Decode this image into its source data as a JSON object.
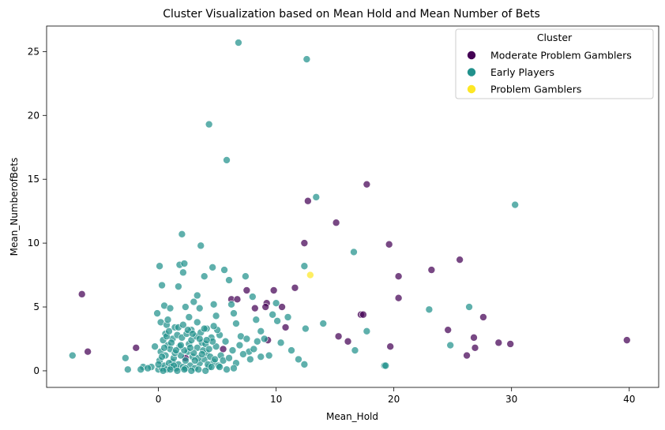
{
  "chart_data": {
    "type": "scatter",
    "title": "Cluster Visualization based on Mean Hold and Mean Number of Bets",
    "xlabel": "Mean_Hold",
    "ylabel": "Mean_NumberofBets",
    "xlim": [
      -9.5,
      42.5
    ],
    "ylim": [
      -1.3,
      27.0
    ],
    "xticks": [
      0,
      10,
      20,
      30,
      40
    ],
    "yticks": [
      0,
      5,
      10,
      15,
      20,
      25
    ],
    "grid": false,
    "legend": {
      "title": "Cluster",
      "position": "top-right"
    },
    "series": [
      {
        "name": "Moderate Problem Gamblers",
        "color": "#440154",
        "points": [
          [
            -6.5,
            6.0
          ],
          [
            -6.0,
            1.5
          ],
          [
            -1.9,
            1.8
          ],
          [
            2.3,
            1.0
          ],
          [
            5.5,
            1.7
          ],
          [
            6.2,
            5.6
          ],
          [
            6.7,
            5.6
          ],
          [
            7.5,
            6.3
          ],
          [
            8.2,
            4.9
          ],
          [
            9.2,
            5.3
          ],
          [
            9.1,
            5.0
          ],
          [
            9.3,
            2.4
          ],
          [
            9.8,
            6.3
          ],
          [
            10.5,
            5.0
          ],
          [
            10.8,
            3.4
          ],
          [
            11.6,
            6.5
          ],
          [
            12.4,
            10.0
          ],
          [
            12.7,
            13.3
          ],
          [
            15.1,
            11.6
          ],
          [
            15.3,
            2.7
          ],
          [
            16.1,
            2.3
          ],
          [
            17.2,
            4.4
          ],
          [
            17.4,
            4.4
          ],
          [
            17.7,
            14.6
          ],
          [
            19.6,
            9.9
          ],
          [
            19.7,
            1.9
          ],
          [
            20.4,
            7.4
          ],
          [
            20.4,
            5.7
          ],
          [
            23.2,
            7.9
          ],
          [
            24.6,
            3.2
          ],
          [
            25.6,
            8.7
          ],
          [
            26.2,
            1.2
          ],
          [
            26.8,
            2.6
          ],
          [
            26.9,
            1.8
          ],
          [
            27.6,
            4.2
          ],
          [
            28.9,
            2.2
          ],
          [
            29.9,
            2.1
          ],
          [
            39.8,
            2.4
          ]
        ]
      },
      {
        "name": "Early Players",
        "color": "#21918c",
        "points": [
          [
            -7.3,
            1.2
          ],
          [
            -2.8,
            1.0
          ],
          [
            -2.6,
            0.1
          ],
          [
            -1.3,
            0.3
          ],
          [
            -0.6,
            0.3
          ],
          [
            -0.3,
            1.9
          ],
          [
            -0.1,
            4.5
          ],
          [
            0.1,
            8.2
          ],
          [
            0.2,
            3.8
          ],
          [
            0.3,
            6.7
          ],
          [
            0.5,
            5.1
          ],
          [
            0.6,
            2.9
          ],
          [
            0.7,
            3.6
          ],
          [
            0.8,
            4.0
          ],
          [
            1.0,
            4.9
          ],
          [
            1.2,
            0.7
          ],
          [
            1.4,
            3.4
          ],
          [
            1.7,
            6.6
          ],
          [
            1.8,
            8.3
          ],
          [
            2.0,
            10.7
          ],
          [
            2.2,
            8.4
          ],
          [
            2.1,
            7.7
          ],
          [
            2.3,
            5.0
          ],
          [
            2.6,
            4.2
          ],
          [
            2.8,
            3.2
          ],
          [
            3.0,
            5.4
          ],
          [
            3.3,
            5.9
          ],
          [
            3.5,
            4.9
          ],
          [
            3.6,
            9.8
          ],
          [
            3.9,
            7.4
          ],
          [
            4.1,
            3.3
          ],
          [
            4.3,
            19.3
          ],
          [
            4.6,
            8.1
          ],
          [
            4.7,
            5.2
          ],
          [
            4.9,
            4.3
          ],
          [
            5.2,
            2.8
          ],
          [
            5.6,
            7.9
          ],
          [
            5.8,
            16.5
          ],
          [
            6.0,
            7.1
          ],
          [
            6.2,
            5.2
          ],
          [
            6.4,
            4.5
          ],
          [
            6.6,
            3.7
          ],
          [
            6.8,
            25.7
          ],
          [
            7.0,
            2.7
          ],
          [
            7.4,
            7.4
          ],
          [
            7.7,
            1.5
          ],
          [
            8.0,
            5.8
          ],
          [
            8.3,
            4.0
          ],
          [
            8.7,
            3.1
          ],
          [
            9.0,
            2.5
          ],
          [
            9.4,
            1.2
          ],
          [
            9.7,
            4.4
          ],
          [
            10.0,
            5.3
          ],
          [
            10.1,
            3.9
          ],
          [
            10.4,
            2.2
          ],
          [
            11.0,
            4.2
          ],
          [
            11.3,
            1.6
          ],
          [
            11.9,
            0.9
          ],
          [
            12.4,
            8.2
          ],
          [
            12.6,
            24.4
          ],
          [
            12.5,
            3.3
          ],
          [
            12.4,
            0.5
          ],
          [
            13.4,
            13.6
          ],
          [
            14.0,
            3.7
          ],
          [
            16.6,
            9.3
          ],
          [
            16.7,
            1.6
          ],
          [
            17.7,
            3.1
          ],
          [
            19.2,
            0.4
          ],
          [
            19.3,
            0.4
          ],
          [
            23.0,
            4.8
          ],
          [
            24.8,
            2.0
          ],
          [
            26.4,
            5.0
          ],
          [
            30.3,
            13.0
          ],
          [
            0.0,
            0.1
          ],
          [
            0.3,
            0.2
          ],
          [
            0.5,
            0.4
          ],
          [
            0.7,
            0.1
          ],
          [
            0.9,
            0.6
          ],
          [
            1.1,
            0.3
          ],
          [
            1.3,
            1.0
          ],
          [
            1.5,
            0.2
          ],
          [
            1.7,
            0.5
          ],
          [
            1.9,
            1.2
          ],
          [
            2.1,
            0.3
          ],
          [
            2.3,
            0.8
          ],
          [
            2.5,
            1.5
          ],
          [
            2.7,
            0.4
          ],
          [
            2.9,
            1.1
          ],
          [
            3.1,
            0.2
          ],
          [
            3.3,
            1.8
          ],
          [
            3.5,
            0.6
          ],
          [
            3.7,
            2.2
          ],
          [
            3.9,
            0.9
          ],
          [
            4.1,
            1.4
          ],
          [
            4.3,
            0.3
          ],
          [
            4.5,
            2.6
          ],
          [
            4.7,
            0.7
          ],
          [
            4.9,
            1.9
          ],
          [
            5.1,
            0.4
          ],
          [
            5.3,
            1.2
          ],
          [
            5.5,
            0.8
          ],
          [
            5.7,
            2.3
          ],
          [
            6.0,
            1.0
          ],
          [
            6.3,
            1.6
          ],
          [
            6.6,
            0.6
          ],
          [
            6.9,
            2.0
          ],
          [
            7.2,
            1.3
          ],
          [
            7.5,
            2.5
          ],
          [
            7.8,
            0.9
          ],
          [
            8.1,
            1.7
          ],
          [
            8.4,
            2.3
          ],
          [
            8.7,
            1.1
          ],
          [
            0.2,
            1.5
          ],
          [
            0.4,
            2.4
          ],
          [
            0.6,
            1.2
          ],
          [
            0.8,
            2.0
          ],
          [
            1.0,
            1.7
          ],
          [
            1.2,
            2.5
          ],
          [
            1.4,
            1.4
          ],
          [
            1.6,
            2.8
          ],
          [
            1.8,
            1.9
          ],
          [
            2.0,
            2.6
          ],
          [
            2.2,
            1.6
          ],
          [
            2.4,
            2.9
          ],
          [
            2.6,
            2.1
          ],
          [
            2.8,
            2.4
          ],
          [
            3.0,
            1.4
          ],
          [
            3.2,
            2.7
          ],
          [
            3.4,
            1.0
          ],
          [
            3.6,
            3.0
          ],
          [
            3.8,
            1.6
          ],
          [
            4.0,
            2.1
          ],
          [
            4.2,
            0.5
          ],
          [
            4.4,
            1.1
          ],
          [
            4.6,
            2.3
          ],
          [
            4.8,
            0.9
          ],
          [
            5.0,
            3.2
          ],
          [
            0.1,
            0.8
          ],
          [
            0.3,
            1.1
          ],
          [
            0.5,
            1.8
          ],
          [
            0.7,
            2.7
          ],
          [
            0.9,
            3.1
          ],
          [
            1.1,
            2.2
          ],
          [
            1.3,
            0.4
          ],
          [
            1.5,
            1.6
          ],
          [
            1.7,
            3.4
          ],
          [
            1.9,
            2.0
          ],
          [
            2.1,
            3.6
          ],
          [
            2.3,
            0.2
          ],
          [
            2.5,
            3.2
          ],
          [
            2.7,
            1.8
          ],
          [
            2.9,
            2.9
          ],
          [
            3.1,
            0.8
          ],
          [
            3.3,
            3.8
          ],
          [
            3.5,
            2.5
          ],
          [
            3.7,
            1.3
          ],
          [
            3.9,
            3.3
          ],
          [
            4.1,
            2.4
          ],
          [
            4.3,
            1.7
          ],
          [
            4.5,
            0.3
          ],
          [
            4.7,
            3.5
          ],
          [
            -0.9,
            0.2
          ],
          [
            -1.5,
            0.1
          ],
          [
            0.0,
            0.5
          ],
          [
            0.4,
            0.0
          ],
          [
            1.0,
            0.1
          ],
          [
            1.6,
            0.0
          ],
          [
            2.2,
            0.1
          ],
          [
            2.8,
            0.0
          ],
          [
            3.4,
            0.1
          ],
          [
            4.0,
            0.0
          ],
          [
            5.2,
            0.3
          ],
          [
            5.8,
            0.1
          ],
          [
            6.4,
            0.2
          ]
        ]
      },
      {
        "name": "Problem Gamblers",
        "color": "#fde725",
        "points": [
          [
            12.9,
            7.5
          ]
        ]
      }
    ]
  }
}
